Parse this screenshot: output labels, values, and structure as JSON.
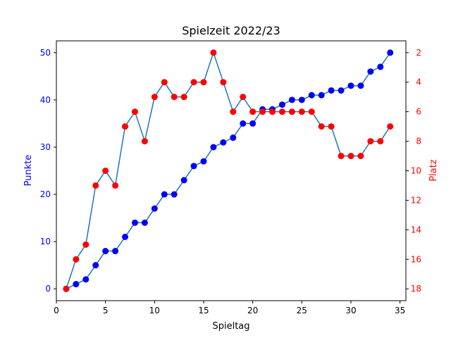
{
  "chart_data": {
    "type": "line",
    "title": "Spielzeit 2022/23",
    "xlabel": "Spieltag",
    "ylabel": "Punkte",
    "ylabel_right": "Platz",
    "x": [
      1,
      2,
      3,
      4,
      5,
      6,
      7,
      8,
      9,
      10,
      11,
      12,
      13,
      14,
      15,
      16,
      17,
      18,
      19,
      20,
      21,
      22,
      23,
      24,
      25,
      26,
      27,
      28,
      29,
      30,
      31,
      32,
      33,
      34
    ],
    "xlim": [
      0,
      35.6
    ],
    "ylim": [
      -2.5,
      52.5
    ],
    "ylim_right": [
      18.8,
      1.2
    ],
    "y_right_inverted": true,
    "x_ticks": [
      "0",
      "5",
      "10",
      "15",
      "20",
      "25",
      "30",
      "35"
    ],
    "y_ticks_left": [
      "0",
      "10",
      "20",
      "30",
      "40",
      "50"
    ],
    "y_ticks_right": [
      "2",
      "4",
      "6",
      "8",
      "10",
      "12",
      "14",
      "16",
      "18"
    ],
    "grid": false,
    "colors": {
      "line": "#1f77b4",
      "points_marker": "#0000ff",
      "platz_marker": "#ff0000",
      "left_axis": "#0000ff",
      "right_axis": "#ff0000",
      "axes": "#000000"
    },
    "series": [
      {
        "axis": "left",
        "values": [
          0,
          1,
          2,
          5,
          8,
          8,
          11,
          14,
          14,
          17,
          20,
          20,
          23,
          26,
          27,
          30,
          31,
          32,
          35,
          35,
          38,
          38,
          39,
          40,
          40,
          41,
          41,
          42,
          42,
          43,
          43,
          46,
          47,
          50
        ]
      },
      {
        "axis": "right",
        "values": [
          18,
          16,
          15,
          11,
          10,
          11,
          7,
          6,
          8,
          5,
          4,
          5,
          5,
          4,
          4,
          2,
          4,
          6,
          5,
          6,
          6,
          6,
          6,
          6,
          6,
          6,
          7,
          7,
          9,
          9,
          9,
          8,
          8,
          7
        ]
      }
    ]
  }
}
